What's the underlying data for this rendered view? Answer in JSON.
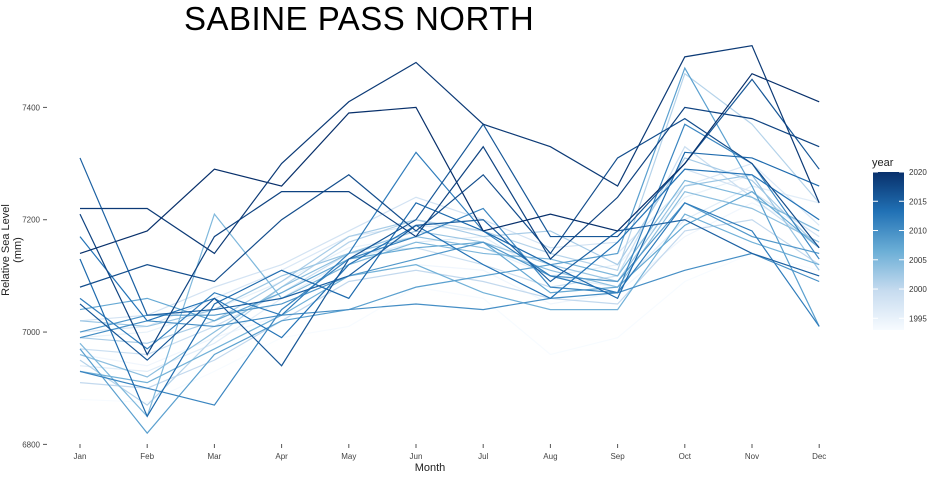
{
  "chart_data": {
    "type": "line",
    "title": "SABINE PASS NORTH",
    "xlabel": "Month",
    "ylabel": "Relative Sea Level (mm)",
    "categories": [
      "Jan",
      "Feb",
      "Mar",
      "Apr",
      "May",
      "Jun",
      "Jul",
      "Aug",
      "Sep",
      "Oct",
      "Nov",
      "Dec"
    ],
    "ylim": [
      6790,
      7520
    ],
    "yticks": [
      6800,
      7000,
      7200,
      7400
    ],
    "grid": false,
    "legend": {
      "title": "year",
      "placement": "right",
      "type": "colorbar",
      "range": [
        1993,
        2020
      ],
      "ticks": [
        1995,
        2000,
        2005,
        2010,
        2015,
        2020
      ],
      "color_low": "#f7fbff",
      "color_high": "#08306b"
    },
    "series": [
      {
        "year": 1993,
        "values": [
          6880,
          6875,
          6930,
          6990,
          7010,
          7080,
          7060,
          6960,
          6990,
          7090,
          7140,
          7110
        ]
      },
      {
        "year": 1994,
        "values": [
          6960,
          6940,
          6990,
          7030,
          7100,
          7120,
          7110,
          7050,
          7070,
          7170,
          7230,
          7180
        ]
      },
      {
        "year": 1995,
        "values": [
          6990,
          7000,
          7040,
          7090,
          7150,
          7170,
          7150,
          7100,
          7120,
          7240,
          7280,
          7200
        ]
      },
      {
        "year": 1996,
        "values": [
          6940,
          6930,
          6980,
          7060,
          7130,
          7160,
          7170,
          7100,
          7080,
          7200,
          7260,
          7230
        ]
      },
      {
        "year": 1997,
        "values": [
          7000,
          7010,
          7060,
          7110,
          7170,
          7190,
          7180,
          7120,
          7140,
          7260,
          7300,
          7190
        ]
      },
      {
        "year": 1998,
        "values": [
          7020,
          7030,
          7080,
          7120,
          7180,
          7240,
          7200,
          7150,
          7160,
          7290,
          7250,
          7170
        ]
      },
      {
        "year": 1999,
        "values": [
          6970,
          6960,
          7010,
          7070,
          7140,
          7150,
          7120,
          7080,
          7100,
          7330,
          7240,
          7150
        ]
      },
      {
        "year": 2000,
        "values": [
          6910,
          6900,
          6950,
          7020,
          7090,
          7110,
          7090,
          7060,
          7050,
          7180,
          7200,
          7120
        ]
      },
      {
        "year": 2001,
        "values": [
          6950,
          6870,
          6990,
          7080,
          7160,
          7200,
          7180,
          7140,
          7110,
          7460,
          7370,
          7230
        ]
      },
      {
        "year": 2002,
        "values": [
          6990,
          6980,
          7020,
          7090,
          7170,
          7200,
          7170,
          7180,
          7120,
          7310,
          7270,
          7150
        ]
      },
      {
        "year": 2003,
        "values": [
          7020,
          7010,
          7040,
          7100,
          7140,
          7180,
          7160,
          7120,
          7090,
          7260,
          7280,
          7110
        ]
      },
      {
        "year": 2004,
        "values": [
          6960,
          6920,
          7000,
          7080,
          7140,
          7170,
          7150,
          7110,
          7080,
          7250,
          7220,
          7160
        ]
      },
      {
        "year": 2005,
        "values": [
          6980,
          6850,
          7210,
          7060,
          7120,
          7160,
          7140,
          7130,
          7100,
          7270,
          7240,
          7180
        ]
      },
      {
        "year": 2006,
        "values": [
          6930,
          6910,
          6970,
          7030,
          7100,
          7120,
          7070,
          7040,
          7040,
          7210,
          7160,
          7120
        ]
      },
      {
        "year": 2007,
        "values": [
          7040,
          7060,
          7020,
          7070,
          7130,
          7150,
          7160,
          7070,
          7080,
          7190,
          7250,
          7150
        ]
      },
      {
        "year": 2008,
        "values": [
          6970,
          6820,
          6960,
          7020,
          7040,
          7080,
          7100,
          7120,
          7140,
          7470,
          7260,
          7010
        ]
      },
      {
        "year": 2009,
        "values": [
          7000,
          7030,
          7030,
          7050,
          7100,
          7130,
          7160,
          7100,
          7090,
          7230,
          7170,
          7140
        ]
      },
      {
        "year": 2010,
        "values": [
          6990,
          7020,
          7010,
          7030,
          7040,
          7050,
          7040,
          7060,
          7070,
          7110,
          7140,
          7090
        ]
      },
      {
        "year": 2011,
        "values": [
          6930,
          6900,
          6870,
          7040,
          7130,
          7170,
          7220,
          7080,
          7070,
          7370,
          7300,
          7130
        ]
      },
      {
        "year": 2012,
        "values": [
          7060,
          6970,
          7070,
          7030,
          7140,
          7320,
          7180,
          7100,
          7070,
          7230,
          7180,
          7010
        ]
      },
      {
        "year": 2013,
        "values": [
          7170,
          7020,
          7060,
          6990,
          7120,
          7190,
          7120,
          7060,
          7160,
          7290,
          7280,
          7200
        ]
      },
      {
        "year": 2014,
        "values": [
          7130,
          6850,
          7050,
          7110,
          7060,
          7230,
          7180,
          7120,
          7060,
          7320,
          7310,
          7260
        ]
      },
      {
        "year": 2015,
        "values": [
          7310,
          7030,
          7040,
          7060,
          7100,
          7190,
          7200,
          7090,
          7180,
          7200,
          7140,
          7100
        ]
      },
      {
        "year": 2016,
        "values": [
          7050,
          6950,
          7060,
          6940,
          7130,
          7200,
          7370,
          7170,
          7170,
          7300,
          7450,
          7290
        ]
      },
      {
        "year": 2017,
        "values": [
          7080,
          7120,
          7090,
          7200,
          7280,
          7180,
          7280,
          7140,
          7310,
          7380,
          7300,
          7150
        ]
      },
      {
        "year": 2018,
        "values": [
          7210,
          6960,
          7170,
          7250,
          7250,
          7170,
          7330,
          7130,
          7240,
          7400,
          7380,
          7330
        ]
      },
      {
        "year": 2019,
        "values": [
          7220,
          7220,
          7140,
          7300,
          7410,
          7480,
          7370,
          7330,
          7260,
          7490,
          7510,
          7230
        ]
      },
      {
        "year": 2020,
        "values": [
          7140,
          7180,
          7290,
          7260,
          7390,
          7400,
          7180,
          7210,
          7180,
          7300,
          7460,
          7410
        ]
      }
    ]
  }
}
